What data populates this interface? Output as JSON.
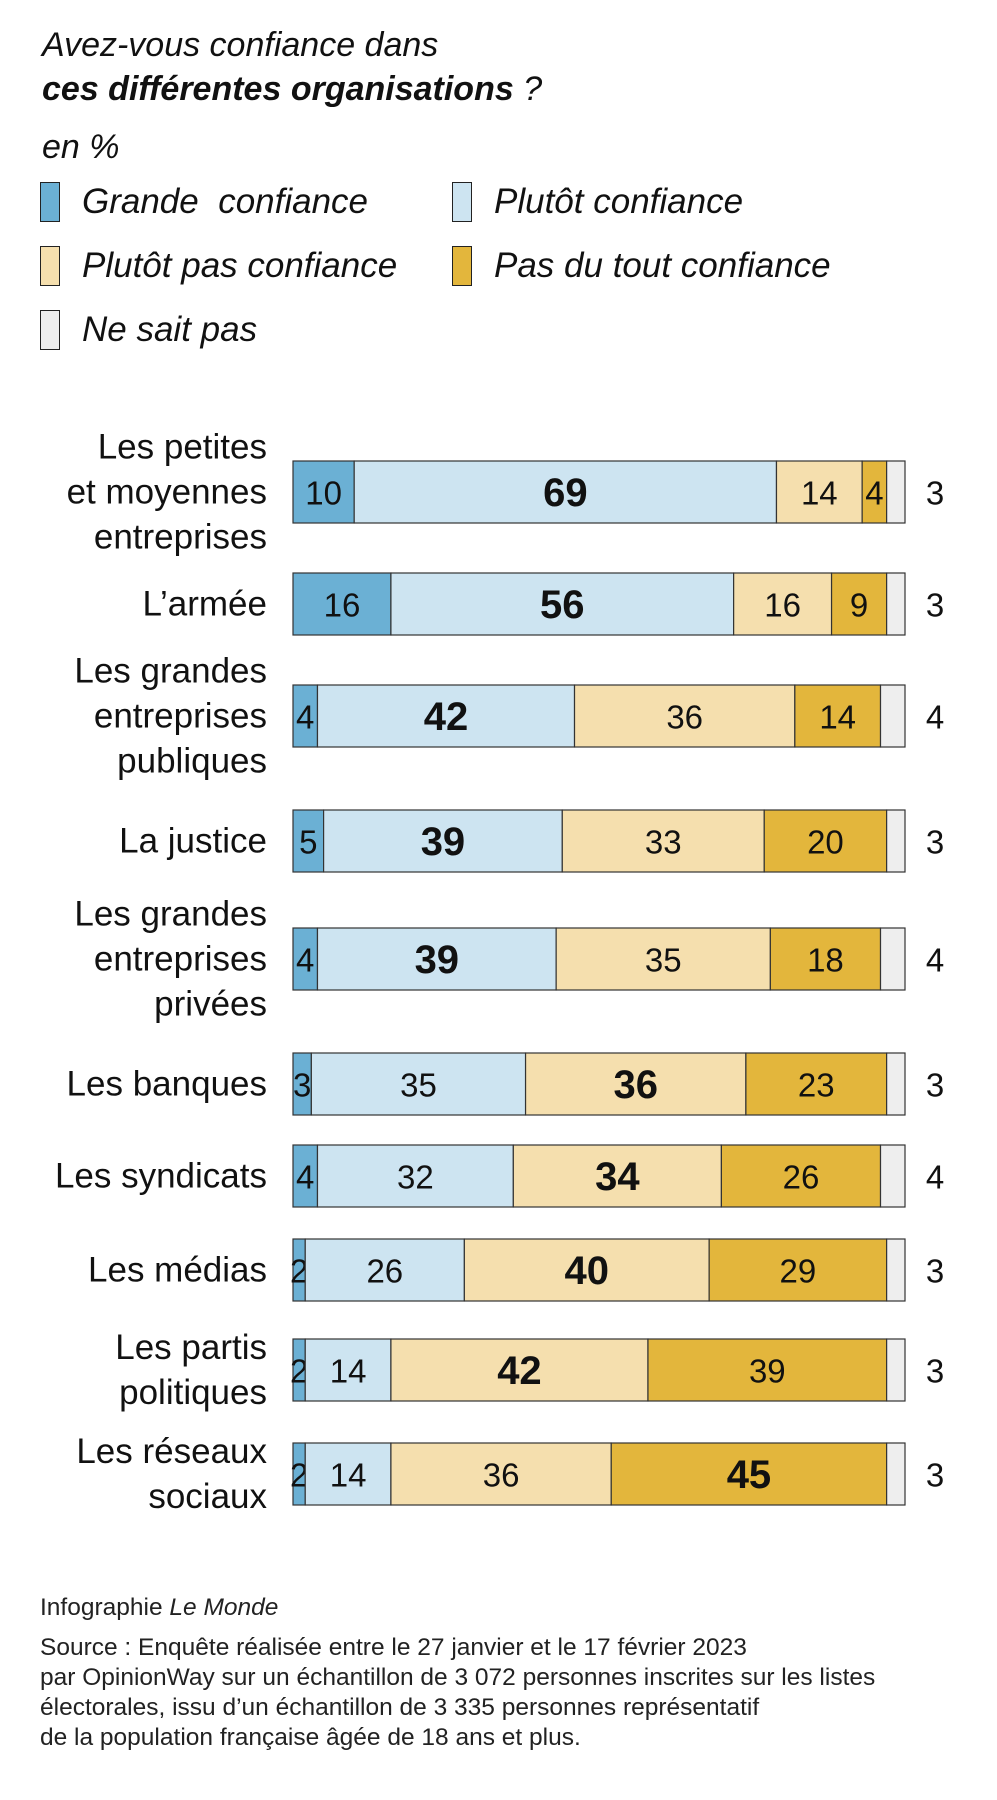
{
  "header": {
    "title_line1": "Avez-vous confiance dans",
    "title_line2_bold": "ces différentes organisations",
    "title_line2_end": " ?",
    "unit": "en %"
  },
  "legend": [
    {
      "label": "Grande  confiance",
      "color": "#6bb0d4"
    },
    {
      "label": "Plutôt confiance",
      "color": "#cde4f1"
    },
    {
      "label": "Plutôt pas confiance",
      "color": "#f5dfae"
    },
    {
      "label": "Pas du tout confiance",
      "color": "#e3b63c"
    },
    {
      "label": "Ne sait pas",
      "color": "#eeeeee"
    }
  ],
  "footer": {
    "credit_prefix": "Infographie ",
    "credit_name": "Le Monde",
    "source_lines": [
      "Source : Enquête réalisée entre le 27 janvier et le 17 février 2023",
      "par OpinionWay sur un échantillon de 3 072 personnes inscrites sur les listes",
      "électorales, issu d’un échantillon de 3 335 personnes représentatif",
      "de la population française âgée de 18 ans et plus."
    ]
  },
  "chart_data": {
    "type": "bar",
    "orientation": "horizontal",
    "stacked": true,
    "categories": [
      [
        "Les petites",
        "et moyennes",
        "entreprises"
      ],
      [
        "L’armée"
      ],
      [
        "Les grandes",
        "entreprises",
        "publiques"
      ],
      [
        "La justice"
      ],
      [
        "Les grandes",
        "entreprises",
        "privées"
      ],
      [
        "Les banques"
      ],
      [
        "Les syndicats"
      ],
      [
        "Les médias"
      ],
      [
        "Les partis",
        "politiques"
      ],
      [
        "Les réseaux",
        "sociaux"
      ]
    ],
    "series": [
      {
        "name": "Grande  confiance",
        "color": "#6bb0d4",
        "values": [
          10,
          16,
          4,
          5,
          4,
          3,
          4,
          2,
          2,
          2
        ]
      },
      {
        "name": "Plutôt confiance",
        "color": "#cde4f1",
        "values": [
          69,
          56,
          42,
          39,
          39,
          35,
          32,
          26,
          14,
          14
        ]
      },
      {
        "name": "Plutôt pas confiance",
        "color": "#f5dfae",
        "values": [
          14,
          16,
          36,
          33,
          35,
          36,
          34,
          40,
          42,
          36
        ]
      },
      {
        "name": "Pas du tout confiance",
        "color": "#e3b63c",
        "values": [
          4,
          9,
          14,
          20,
          18,
          23,
          26,
          29,
          39,
          45
        ]
      },
      {
        "name": "Ne sait pas",
        "color": "#eeeeee",
        "values": [
          3,
          3,
          4,
          3,
          4,
          3,
          4,
          3,
          3,
          3
        ]
      }
    ],
    "highlight_series_index": [
      1,
      1,
      1,
      1,
      1,
      2,
      2,
      2,
      2,
      3
    ],
    "xlim": [
      0,
      100
    ]
  }
}
